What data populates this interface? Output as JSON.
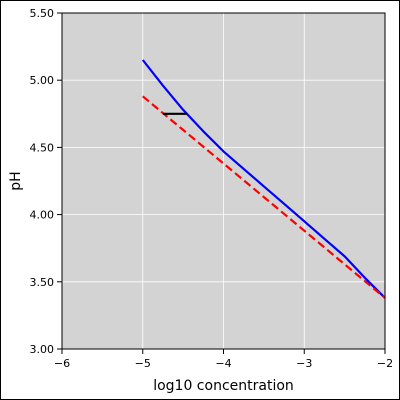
{
  "chart_data": {
    "type": "line",
    "title": "",
    "xlabel": "log10 concentration",
    "ylabel": "pH",
    "xlim": [
      -6,
      -2
    ],
    "ylim": [
      3.0,
      5.5
    ],
    "x_ticks": [
      -6,
      -5,
      -4,
      -3,
      -2
    ],
    "x_tick_labels": [
      "−6",
      "−5",
      "−4",
      "−3",
      "−2"
    ],
    "y_ticks": [
      3.0,
      3.5,
      4.0,
      4.5,
      5.0,
      5.5
    ],
    "y_tick_labels": [
      "3.00",
      "3.50",
      "4.00",
      "4.50",
      "5.00",
      "5.50"
    ],
    "grid": true,
    "background_color": "#d3d3d3",
    "grid_color": "#ffffff",
    "series": [
      {
        "color": "#0000ff",
        "style": "solid",
        "x": [
          -5.0,
          -4.75,
          -4.5,
          -4.25,
          -4.0,
          -3.75,
          -3.5,
          -3.25,
          -3.0,
          -2.75,
          -2.5,
          -2.25,
          -2.0
        ],
        "y": [
          5.15,
          4.96,
          4.78,
          4.62,
          4.47,
          4.34,
          4.21,
          4.08,
          3.95,
          3.82,
          3.69,
          3.53,
          3.38
        ]
      },
      {
        "color": "#ff0000",
        "style": "dashed",
        "x": [
          -5.0,
          -4.5,
          -4.0,
          -3.5,
          -3.0,
          -2.5,
          -2.0
        ],
        "y": [
          4.88,
          4.63,
          4.38,
          4.13,
          3.88,
          3.63,
          3.38
        ]
      },
      {
        "color": "#000000",
        "style": "solid",
        "x": [
          -4.75,
          -4.45
        ],
        "y": [
          4.75,
          4.75
        ]
      }
    ]
  }
}
